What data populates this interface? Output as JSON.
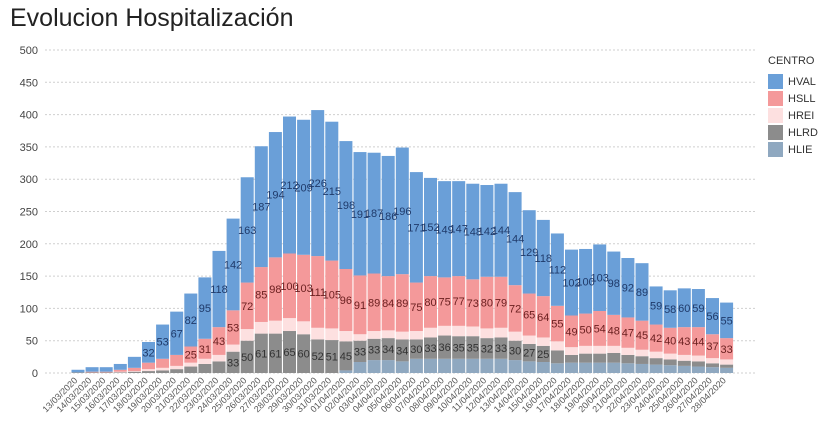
{
  "chart_data": {
    "type": "bar",
    "stacked": true,
    "title": "Evolucion Hospitalización",
    "xlabel": "",
    "ylabel": "",
    "ylim": [
      0,
      500
    ],
    "yticks": [
      0,
      50,
      100,
      150,
      200,
      250,
      300,
      350,
      400,
      450,
      500
    ],
    "grid": true,
    "legend": {
      "title": "CENTRO",
      "position": "right"
    },
    "categories": [
      "13/03/2020",
      "14/03/2020",
      "15/03/2020",
      "16/03/2020",
      "17/03/2020",
      "18/03/2020",
      "19/03/2020",
      "20/03/2020",
      "21/03/2020",
      "22/03/2020",
      "23/03/2020",
      "24/03/2020",
      "25/03/2020",
      "26/03/2020",
      "27/03/2020",
      "28/03/2020",
      "29/03/2020",
      "30/03/2020",
      "31/03/2020",
      "01/04/2020",
      "02/04/2020",
      "03/04/2020",
      "04/04/2020",
      "05/04/2020",
      "06/04/2020",
      "07/04/2020",
      "08/04/2020",
      "09/04/2020",
      "10/04/2020",
      "11/04/2020",
      "12/04/2020",
      "13/04/2020",
      "14/04/2020",
      "15/04/2020",
      "16/04/2020",
      "17/04/2020",
      "18/04/2020",
      "19/04/2020",
      "20/04/2020",
      "21/04/2020",
      "22/04/2020",
      "23/04/2020",
      "24/04/2020",
      "25/04/2020",
      "26/04/2020",
      "27/04/2020",
      "28/04/2020"
    ],
    "series": [
      {
        "name": "HLIE",
        "color": "#8fa8c0",
        "labelColor": "#333333",
        "values": [
          0,
          0,
          0,
          0,
          0,
          0,
          0,
          0,
          0,
          0,
          0,
          0,
          0,
          0,
          0,
          0,
          0,
          0,
          0,
          4,
          17,
          20,
          20,
          18,
          22,
          22,
          22,
          22,
          22,
          22,
          22,
          20,
          18,
          17,
          15,
          16,
          16,
          16,
          16,
          15,
          14,
          13,
          12,
          11,
          10,
          9,
          8
        ]
      },
      {
        "name": "HLRD",
        "color": "#8c8c8c",
        "labelColor": "#333333",
        "values": [
          1,
          1,
          1,
          1,
          2,
          3,
          4,
          6,
          10,
          14,
          18,
          33,
          50,
          61,
          61,
          65,
          60,
          52,
          51,
          45,
          33,
          33,
          34,
          34,
          30,
          33,
          36,
          35,
          35,
          32,
          33,
          30,
          27,
          25,
          20,
          12,
          14,
          14,
          15,
          13,
          12,
          10,
          9,
          8,
          8,
          6,
          5
        ]
      },
      {
        "name": "HREI",
        "color": "#fde0e0",
        "labelColor": "#333333",
        "values": [
          0,
          0,
          0,
          1,
          1,
          3,
          4,
          5,
          6,
          8,
          10,
          11,
          18,
          18,
          20,
          20,
          20,
          18,
          18,
          16,
          10,
          12,
          12,
          12,
          13,
          15,
          15,
          16,
          15,
          15,
          15,
          14,
          13,
          13,
          14,
          12,
          12,
          12,
          11,
          11,
          10,
          10,
          9,
          9,
          9,
          8,
          8
        ]
      },
      {
        "name": "HSLL",
        "color": "#f4999a",
        "labelColor": "#6a1f1f",
        "values": [
          0,
          1,
          1,
          3,
          5,
          10,
          14,
          17,
          25,
          31,
          43,
          53,
          72,
          85,
          98,
          100,
          103,
          111,
          105,
          96,
          91,
          89,
          84,
          89,
          75,
          80,
          75,
          77,
          73,
          80,
          79,
          72,
          65,
          64,
          55,
          49,
          50,
          54,
          48,
          47,
          45,
          42,
          40,
          43,
          44,
          37,
          33
        ]
      },
      {
        "name": "HVAL",
        "color": "#6a9fd8",
        "labelColor": "#1f3a6a",
        "values": [
          4,
          7,
          7,
          9,
          17,
          32,
          53,
          67,
          82,
          95,
          118,
          142,
          163,
          187,
          194,
          212,
          209,
          226,
          215,
          198,
          191,
          187,
          186,
          196,
          171,
          152,
          149,
          147,
          148,
          142,
          144,
          144,
          129,
          118,
          112,
          102,
          100,
          103,
          98,
          92,
          89,
          59,
          58,
          60,
          59,
          56,
          55
        ]
      }
    ],
    "labeled_series": [
      "HVAL",
      "HSLL",
      "HLRD"
    ],
    "legend_order": [
      "HVAL",
      "HSLL",
      "HREI",
      "HLRD",
      "HLIE"
    ]
  }
}
